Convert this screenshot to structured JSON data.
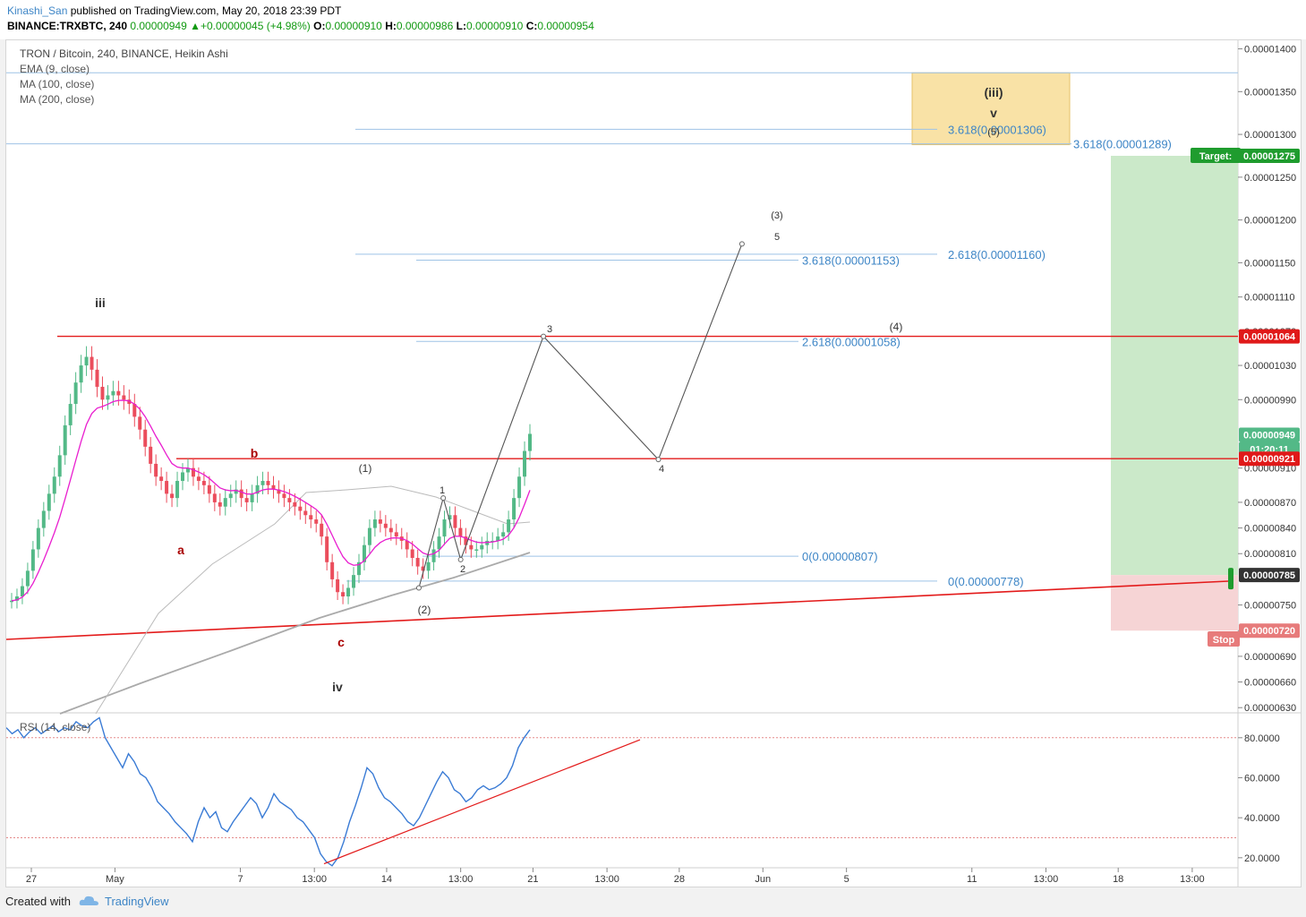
{
  "header": {
    "author": "Kinashi_San",
    "published_text": "published on TradingView.com, May 20, 2018 23:39 PDT",
    "symbol": "BINANCE:TRXBTC, 240",
    "last": "0.00000949",
    "change_icon": "triangle-up-icon",
    "change": "+0.00000045 (+4.98%)",
    "o_label": "O:",
    "o": "0.00000910",
    "h_label": "H:",
    "h": "0.00000986",
    "l_label": "L:",
    "l": "0.00000910",
    "c_label": "C:",
    "c": "0.00000954"
  },
  "legend": {
    "title": "TRON / Bitcoin, 240, BINANCE, Heikin Ashi",
    "ema": "EMA (9, close)",
    "ma100": "MA (100, close)",
    "ma200": "MA (200, close)",
    "rsi": "RSI (14, close)"
  },
  "footer": {
    "created_with": "Created with",
    "brand": "TradingView",
    "brand_icon": "tradingview-cloud-icon"
  },
  "colors": {
    "up": "#53b987",
    "down": "#eb4d5c",
    "ema": "#e91ecf",
    "ma": "#aaaaaa",
    "resistance": "#e31b1b",
    "fib": "#3d85c6",
    "target_zone": "#cbe9c9",
    "stop_zone": "#f6d4d5",
    "wave_box": "#f9e2a6",
    "rsi": "#3a7bd5"
  },
  "chart_data": {
    "type": "candlestick",
    "style": "Heikin Ashi",
    "y_scale": "linear",
    "ylim": [
      6.25e-06,
      1.41e-05
    ],
    "x_labels": [
      "27",
      "May",
      "7",
      "13:00",
      "14",
      "13:00",
      "21",
      "13:00",
      "28",
      "Jun",
      "5",
      "11",
      "13:00",
      "18",
      "13:00"
    ],
    "x_label_positions_date": [
      "Apr 27",
      "May 1",
      "May 7",
      "May 10 13:00",
      "May 14",
      "May 17 13:00",
      "May 21",
      "May 24 13:00",
      "May 28",
      "Jun 1",
      "Jun 5",
      "Jun 11",
      "Jun 14 13:00",
      "Jun 18",
      "Jun 21 13:00"
    ],
    "y_ticks": [
      "0.00001400",
      "0.00001350",
      "0.00001300",
      "0.00001250",
      "0.00001200",
      "0.00001150",
      "0.00001110",
      "0.00001070",
      "0.00001030",
      "0.00000990",
      "0.00000910",
      "0.00000870",
      "0.00000840",
      "0.00000810",
      "0.00000750",
      "0.00000720",
      "0.00000690",
      "0.00000660",
      "0.00000630"
    ],
    "price_badges": [
      {
        "label": "Target:",
        "value": "0.00001275"
      },
      {
        "value": "0.00001064"
      },
      {
        "value": "0.00000949"
      },
      {
        "value": "01:20:11"
      },
      {
        "value": "0.00000921"
      },
      {
        "value": "0.00000785"
      },
      {
        "value": "0.00000720"
      },
      {
        "label": "Stop"
      }
    ],
    "close_series": [
      7.55e-06,
      7.6e-06,
      7.72e-06,
      7.9e-06,
      8.15e-06,
      8.4e-06,
      8.6e-06,
      8.8e-06,
      9e-06,
      9.25e-06,
      9.6e-06,
      9.85e-06,
      1.01e-05,
      1.03e-05,
      1.04e-05,
      1.025e-05,
      1.005e-05,
      9.9e-06,
      9.95e-06,
      1e-05,
      9.95e-06,
      9.9e-06,
      9.85e-06,
      9.7e-06,
      9.55e-06,
      9.35e-06,
      9.15e-06,
      9e-06,
      8.95e-06,
      8.8e-06,
      8.75e-06,
      8.95e-06,
      9.05e-06,
      9.1e-06,
      9e-06,
      8.95e-06,
      8.9e-06,
      8.8e-06,
      8.7e-06,
      8.65e-06,
      8.75e-06,
      8.8e-06,
      8.85e-06,
      8.75e-06,
      8.7e-06,
      8.8e-06,
      8.9e-06,
      8.95e-06,
      8.9e-06,
      8.85e-06,
      8.8e-06,
      8.75e-06,
      8.7e-06,
      8.65e-06,
      8.6e-06,
      8.55e-06,
      8.5e-06,
      8.45e-06,
      8.3e-06,
      8e-06,
      7.8e-06,
      7.65e-06,
      7.6e-06,
      7.7e-06,
      7.85e-06,
      8e-06,
      8.2e-06,
      8.4e-06,
      8.5e-06,
      8.45e-06,
      8.4e-06,
      8.35e-06,
      8.3e-06,
      8.25e-06,
      8.15e-06,
      8.05e-06,
      7.95e-06,
      7.9e-06,
      8e-06,
      8.15e-06,
      8.3e-06,
      8.5e-06,
      8.55e-06,
      8.4e-06,
      8.3e-06,
      8.2e-06,
      8.15e-06,
      8.15e-06,
      8.2e-06,
      8.25e-06,
      8.25e-06,
      8.3e-06,
      8.35e-06,
      8.5e-06,
      8.75e-06,
      9e-06,
      9.3e-06,
      9.5e-06
    ],
    "annotations": {
      "wave_labels": [
        "iii",
        "a",
        "b",
        "c",
        "iv",
        "(1)",
        "(2)",
        "1",
        "2",
        "3",
        "4",
        "5",
        "(3)",
        "(4)",
        "(iii)",
        "v",
        "(5)"
      ],
      "fib_levels": [
        {
          "text": "3.618(0.00001306)",
          "price": 1.306e-05
        },
        {
          "text": "3.618(0.00001289)",
          "price": 1.289e-05
        },
        {
          "text": "2.618(0.00001160)",
          "price": 1.16e-05
        },
        {
          "text": "3.618(0.00001153)",
          "price": 1.153e-05
        },
        {
          "text": "2.618(0.00001058)",
          "price": 1.058e-05
        },
        {
          "text": "0(0.00000807)",
          "price": 8.07e-06
        },
        {
          "text": "0(0.00000778)",
          "price": 7.78e-06
        }
      ],
      "resistance_lines": [
        1.064e-05,
        9.21e-06
      ],
      "projection_path_prices": [
        7.7e-06,
        8.75e-06,
        8.03e-06,
        1.064e-05,
        9.2e-06,
        1.172e-05
      ],
      "projection_labels_date": [
        "May 15 13:00",
        "May 16 17:00",
        "May 17 13:00",
        "May 21 12:00",
        "May 27",
        "May 31"
      ],
      "target_price": 1.275e-05,
      "entry_price": 7.85e-06,
      "stop_price": 7.2e-06
    },
    "rsi": {
      "ylim": [
        15,
        92
      ],
      "y_ticks": [
        "80.0000",
        "60.0000",
        "40.0000",
        "20.0000"
      ],
      "levels": [
        80,
        30
      ],
      "values": [
        85,
        82,
        84,
        80,
        83,
        85,
        82,
        84,
        86,
        83,
        85,
        84,
        88,
        86,
        85,
        88,
        90,
        80,
        75,
        70,
        65,
        72,
        68,
        62,
        60,
        55,
        48,
        45,
        42,
        38,
        35,
        32,
        28,
        38,
        45,
        40,
        43,
        35,
        33,
        38,
        42,
        46,
        50,
        47,
        40,
        45,
        52,
        48,
        46,
        44,
        40,
        38,
        34,
        30,
        22,
        18,
        16,
        20,
        28,
        38,
        46,
        55,
        65,
        62,
        55,
        50,
        48,
        45,
        42,
        38,
        36,
        40,
        46,
        52,
        58,
        63,
        60,
        54,
        52,
        48,
        50,
        54,
        56,
        54,
        55,
        57,
        60,
        66,
        75,
        80,
        84
      ]
    }
  }
}
